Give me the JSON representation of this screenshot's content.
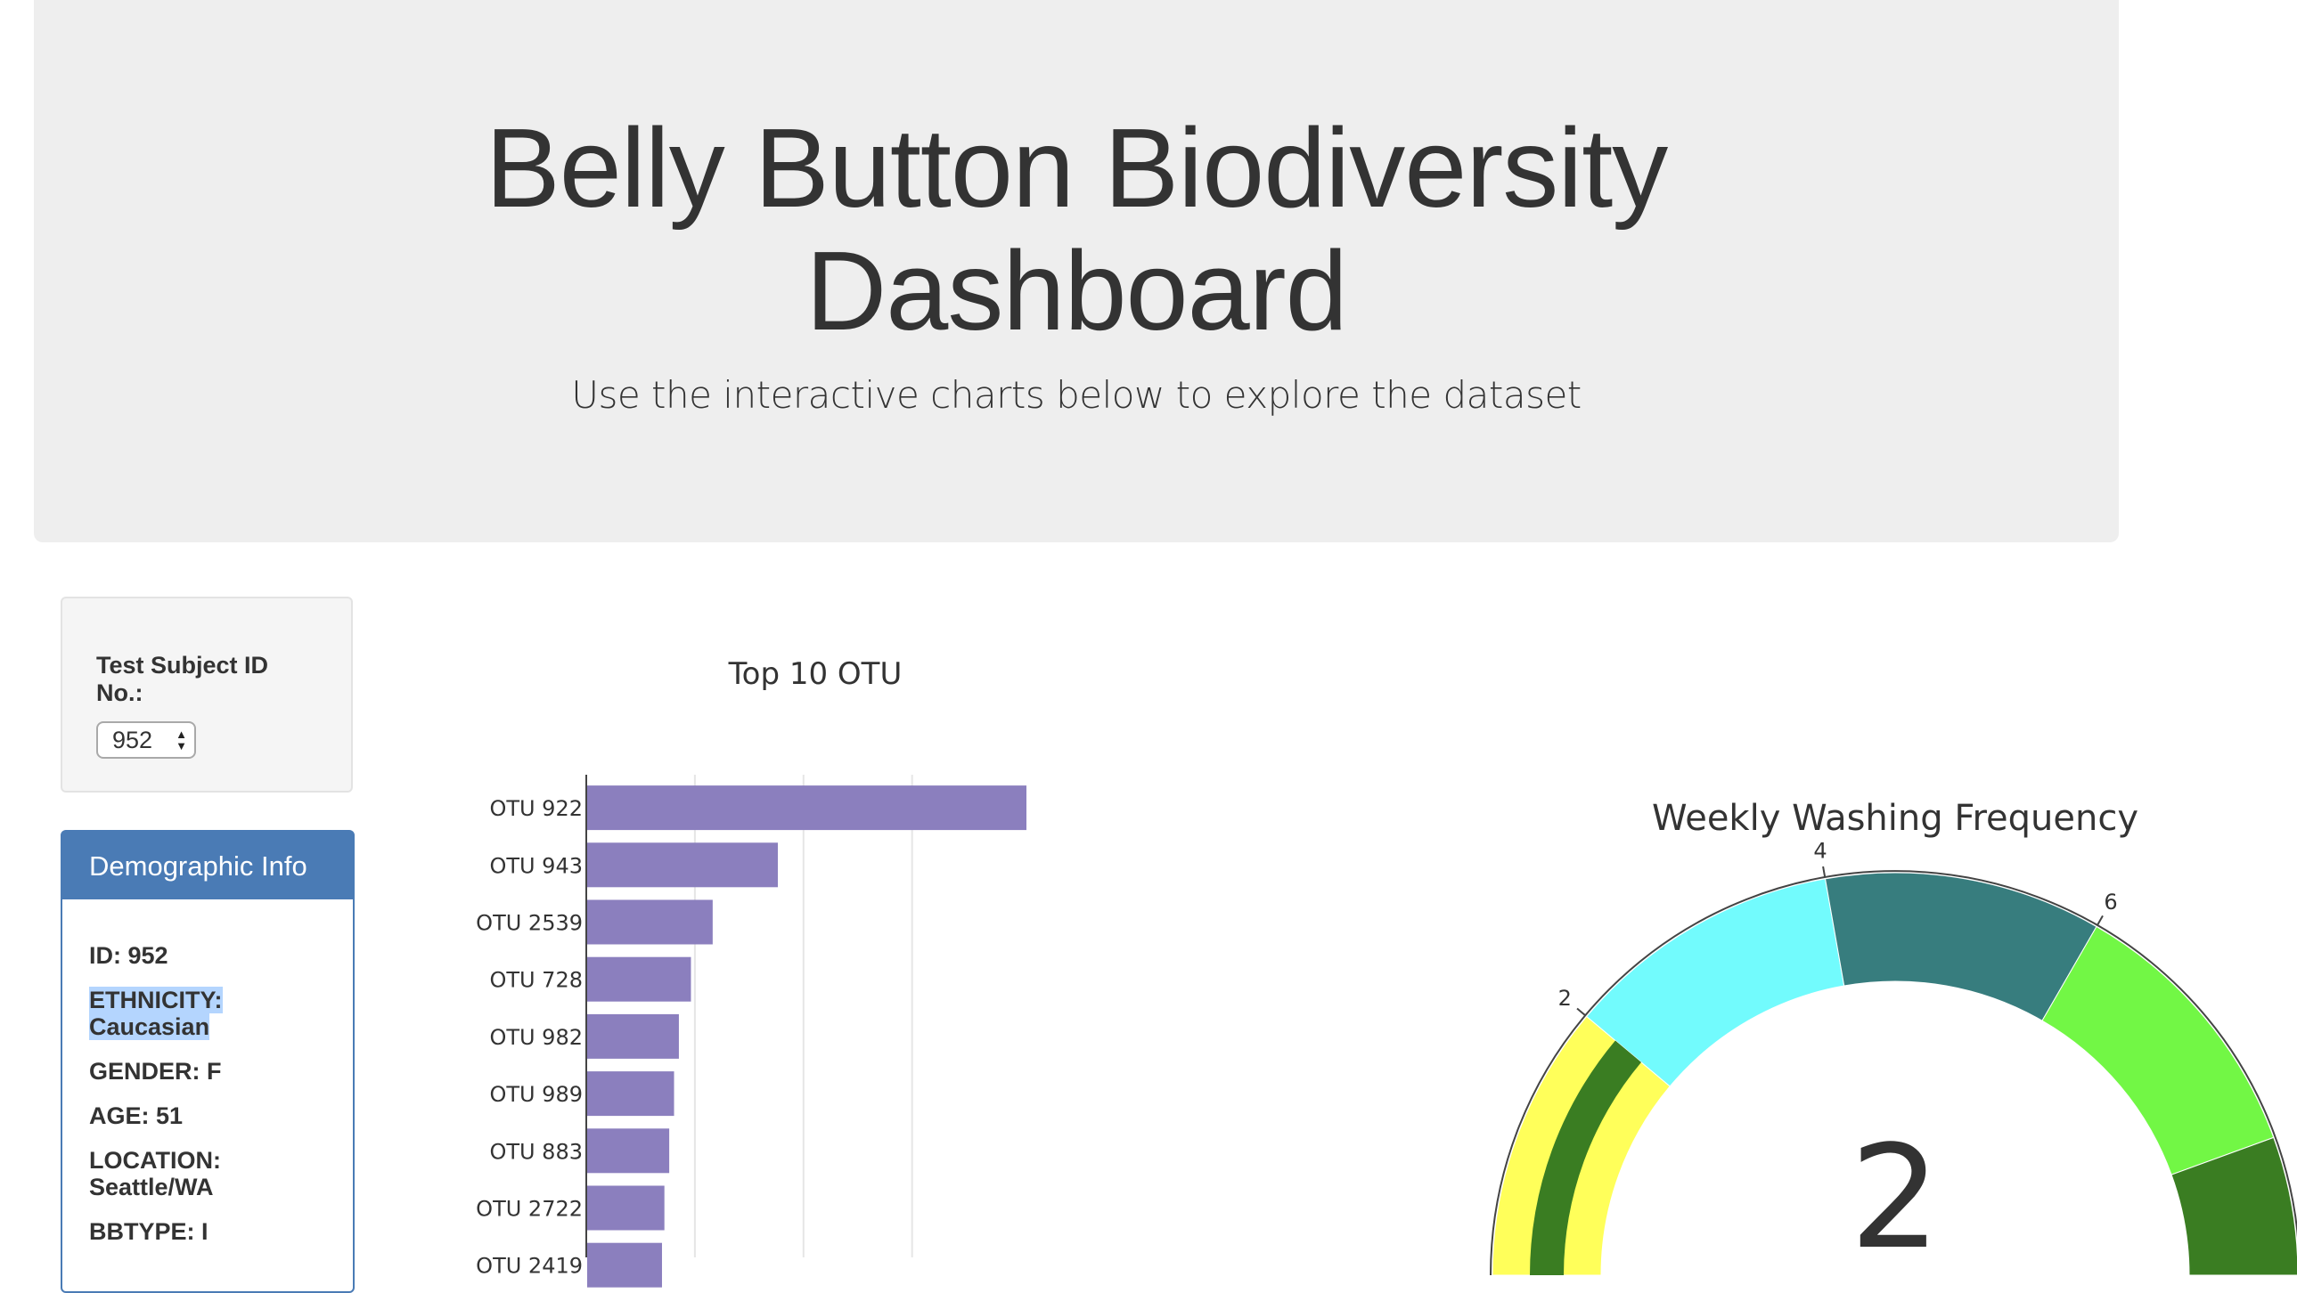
{
  "header": {
    "title": "Belly Button Biodiversity Dashboard",
    "title_line1": "Belly Button Biodiversity",
    "title_line2": "Dashboard",
    "subtitle": "Use the interactive charts below to explore the dataset"
  },
  "selector": {
    "label": "Test Subject ID No.:",
    "value": "952"
  },
  "demographics": {
    "heading": "Demographic Info",
    "rows": [
      {
        "label": "ID:",
        "value": "952"
      },
      {
        "label": "ETHNICITY:",
        "value": "Caucasian"
      },
      {
        "label": "GENDER:",
        "value": "F"
      },
      {
        "label": "AGE:",
        "value": "51"
      },
      {
        "label": "LOCATION:",
        "value": "Seattle/WA"
      },
      {
        "label": "BBTYPE:",
        "value": "I"
      }
    ]
  },
  "colors": {
    "bar": "#8b7fbe",
    "panel_accent": "#4a7bb5",
    "gauge_yellow": "#ffff5a",
    "gauge_dark_green": "#3a7d22",
    "gauge_cyan": "#72fbfd",
    "gauge_teal": "#377d7e",
    "gauge_lime": "#72f745"
  },
  "chart_data": [
    {
      "type": "bar",
      "orientation": "horizontal",
      "title": "Top 10 OTU",
      "categories": [
        "OTU 922",
        "OTU 943",
        "OTU 2539",
        "OTU 728",
        "OTU 982",
        "OTU 989",
        "OTU 883",
        "OTU 2722",
        "OTU 2419"
      ],
      "values": [
        182,
        79,
        52,
        43,
        38,
        36,
        34,
        32,
        31
      ],
      "xlim": [
        0,
        200
      ],
      "grid": true,
      "ylabel": "",
      "xlabel": ""
    },
    {
      "type": "gauge",
      "title": "Weekly Washing Frequency",
      "value": 2,
      "range": [
        0,
        9
      ],
      "tick_labels": [
        "2",
        "4",
        "6"
      ],
      "bands": [
        {
          "from": 0,
          "to": 2,
          "color": "#ffff5a"
        },
        {
          "from": 2,
          "to": 4,
          "color": "#72fbfd"
        },
        {
          "from": 4,
          "to": 6,
          "color": "#377d7e"
        },
        {
          "from": 6,
          "to": 8,
          "color": "#72f745"
        },
        {
          "from": 8,
          "to": 9,
          "color": "#3a7d22"
        }
      ],
      "bar": {
        "from": 0,
        "to": 2,
        "color": "#3a7d22"
      }
    }
  ]
}
